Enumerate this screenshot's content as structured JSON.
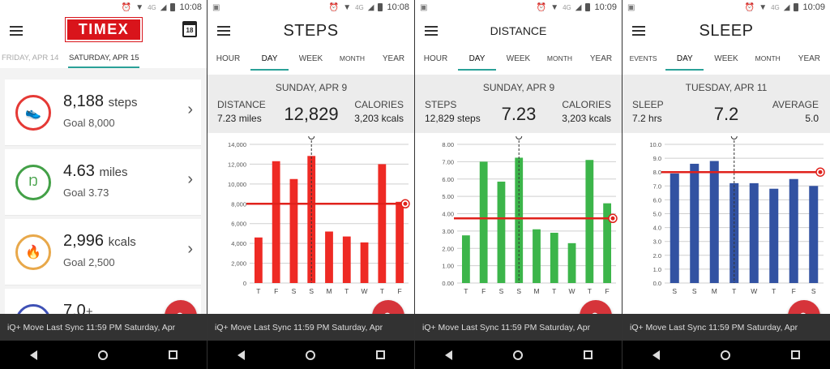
{
  "screens": [
    {
      "status": {
        "time": "10:08",
        "net": "4G"
      },
      "logo": "TIMEX",
      "calendar_day": "18",
      "dates": {
        "prev": "FRIDAY, APR 14",
        "current": "SATURDAY, APR 15"
      },
      "cards": [
        {
          "value": "8,188",
          "unit": "steps",
          "goal": "Goal  8,000",
          "icon": "shoe-icon",
          "color": "#e53935"
        },
        {
          "value": "4.63",
          "unit": "miles",
          "goal": "Goal  3.73",
          "icon": "walker-icon",
          "color": "#43a047"
        },
        {
          "value": "2,996",
          "unit": "kcals",
          "goal": "Goal  2,500",
          "icon": "flame-icon",
          "color": "#e8a84a"
        },
        {
          "value": "7.0",
          "unit": "+",
          "goal": "",
          "icon": "moon-icon",
          "color": "#3f51b5"
        }
      ],
      "sync": "iQ+ Move    Last Sync    11:59 PM Saturday, Apr"
    },
    {
      "status": {
        "time": "10:08",
        "net": "4G"
      },
      "title": "STEPS",
      "tabs": [
        "HOUR",
        "DAY",
        "WEEK",
        "MONTH",
        "YEAR"
      ],
      "active_tab": 1,
      "date": "SUNDAY, APR 9",
      "left_label": "DISTANCE",
      "left_value": "7.23 miles",
      "center_value": "12,829",
      "right_label": "CALORIES",
      "right_value": "3,203 kcals",
      "sync": "iQ+ Move    Last Sync    11:59 PM Saturday, Apr"
    },
    {
      "status": {
        "time": "10:09",
        "net": "4G"
      },
      "title": "DISTANCE",
      "tabs": [
        "HOUR",
        "DAY",
        "WEEK",
        "MONTH",
        "YEAR"
      ],
      "active_tab": 1,
      "date": "SUNDAY, APR 9",
      "left_label": "STEPS",
      "left_value": "12,829 steps",
      "center_value": "7.23",
      "right_label": "CALORIES",
      "right_value": "3,203 kcals",
      "sync": "iQ+ Move    Last Sync    11:59 PM Saturday, Apr"
    },
    {
      "status": {
        "time": "10:09",
        "net": "4G"
      },
      "title": "SLEEP",
      "tabs": [
        "EVENTS",
        "DAY",
        "WEEK",
        "MONTH",
        "YEAR"
      ],
      "active_tab": 1,
      "date": "TUESDAY, APR 11",
      "left_label": "SLEEP",
      "left_value": "7.2 hrs",
      "center_value": "7.2",
      "right_label": "AVERAGE",
      "right_value": "5.0",
      "sync": "iQ+ Move    Last Sync    11:59 PM Saturday, Apr"
    }
  ],
  "chart_data": [
    {
      "type": "bar",
      "categories": [
        "T",
        "F",
        "S",
        "S",
        "M",
        "T",
        "W",
        "T",
        "F"
      ],
      "values": [
        4600,
        12300,
        10500,
        12829,
        5200,
        4700,
        4100,
        12000,
        8200
      ],
      "goal": 8000,
      "selected_index": 3,
      "ylim": [
        0,
        14000
      ],
      "yticks": [
        "0",
        "2,000",
        "4,000",
        "6,000",
        "8,000",
        "10,000",
        "12,000",
        "14,000"
      ],
      "color": "#ee2a24"
    },
    {
      "type": "bar",
      "categories": [
        "T",
        "F",
        "S",
        "S",
        "M",
        "T",
        "W",
        "T",
        "F"
      ],
      "values": [
        2.75,
        7.0,
        5.85,
        7.23,
        3.1,
        2.9,
        2.3,
        7.1,
        4.6
      ],
      "goal": 3.73,
      "selected_index": 3,
      "ylim": [
        0,
        8
      ],
      "yticks": [
        "0.00",
        "1.00",
        "2.00",
        "3.00",
        "4.00",
        "5.00",
        "6.00",
        "7.00",
        "8.00"
      ],
      "color": "#3cb54a"
    },
    {
      "type": "bar",
      "categories": [
        "S",
        "S",
        "M",
        "T",
        "W",
        "T",
        "F",
        "S"
      ],
      "values": [
        7.9,
        8.6,
        8.8,
        7.2,
        7.2,
        6.8,
        7.5,
        7.0
      ],
      "goal": 8.0,
      "selected_index": 3,
      "ylim": [
        0,
        10
      ],
      "yticks": [
        "0.0",
        "1.0",
        "2.0",
        "3.0",
        "4.0",
        "5.0",
        "6.0",
        "7.0",
        "8.0",
        "9.0",
        "10.0"
      ],
      "color": "#3252a2"
    }
  ]
}
